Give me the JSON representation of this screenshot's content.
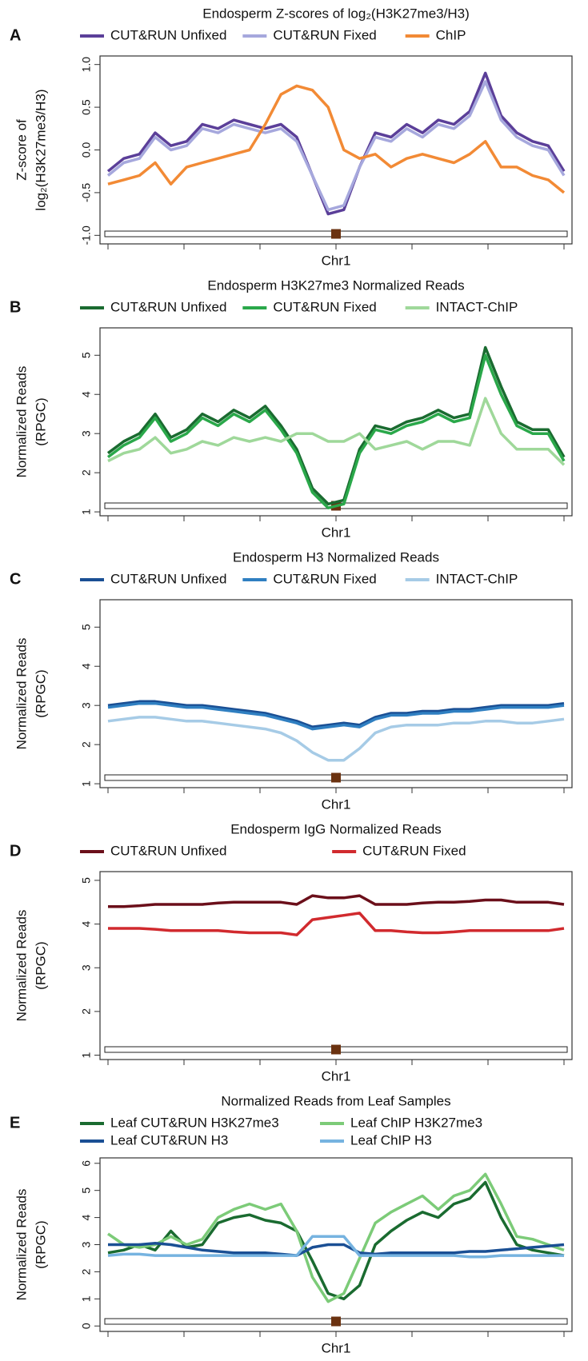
{
  "chart_data": [
    {
      "type": "line",
      "label": "A",
      "title": "Endosperm Z-scores of log₂(H3K27me3/H3)",
      "ylabel": [
        "Z-score of",
        "log₂(H3K27me3/H3)"
      ],
      "xlabel": "Chr1",
      "ylim": [
        -1.1,
        1.1
      ],
      "yticks": [
        {
          "value": -1,
          "label": "-1.0"
        },
        -0.5,
        {
          "value": 0,
          "label": "0.0"
        },
        0.5,
        {
          "value": 1,
          "label": "1.0"
        }
      ],
      "series": [
        {
          "name": "CUT&RUN Unfixed",
          "color": "#5b3f99",
          "values": [
            -0.25,
            -0.1,
            -0.05,
            0.2,
            0.05,
            0.1,
            0.3,
            0.25,
            0.35,
            0.3,
            0.25,
            0.3,
            0.15,
            -0.3,
            -0.75,
            -0.7,
            -0.2,
            0.2,
            0.15,
            0.3,
            0.2,
            0.35,
            0.3,
            0.45,
            0.9,
            0.4,
            0.2,
            0.1,
            0.05,
            -0.25
          ]
        },
        {
          "name": "CUT&RUN Fixed",
          "color": "#a6a8dd",
          "values": [
            -0.3,
            -0.15,
            -0.1,
            0.15,
            0.0,
            0.05,
            0.25,
            0.2,
            0.3,
            0.25,
            0.2,
            0.25,
            0.1,
            -0.3,
            -0.7,
            -0.65,
            -0.2,
            0.15,
            0.1,
            0.25,
            0.15,
            0.3,
            0.25,
            0.4,
            0.8,
            0.35,
            0.15,
            0.05,
            0.0,
            -0.3
          ]
        },
        {
          "name": "ChIP",
          "color": "#f28a35",
          "values": [
            -0.4,
            -0.35,
            -0.3,
            -0.15,
            -0.4,
            -0.2,
            -0.15,
            -0.1,
            -0.05,
            0.0,
            0.3,
            0.65,
            0.75,
            0.7,
            0.5,
            0.0,
            -0.1,
            -0.05,
            -0.2,
            -0.1,
            -0.05,
            -0.1,
            -0.15,
            -0.05,
            0.1,
            -0.2,
            -0.2,
            -0.3,
            -0.35,
            -0.5
          ]
        }
      ]
    },
    {
      "type": "line",
      "label": "B",
      "title": "Endosperm H3K27me3 Normalized Reads",
      "ylabel": [
        "Normalized Reads",
        "(RPGC)"
      ],
      "xlabel": "Chr1",
      "ylim": [
        0.9,
        5.7
      ],
      "yticks": [
        1,
        2,
        3,
        4,
        5
      ],
      "series": [
        {
          "name": "CUT&RUN Unfixed",
          "color": "#1a6b30",
          "values": [
            2.5,
            2.8,
            3.0,
            3.5,
            2.9,
            3.1,
            3.5,
            3.3,
            3.6,
            3.4,
            3.7,
            3.2,
            2.6,
            1.6,
            1.2,
            1.3,
            2.6,
            3.2,
            3.1,
            3.3,
            3.4,
            3.6,
            3.4,
            3.5,
            5.2,
            4.2,
            3.3,
            3.1,
            3.1,
            2.4
          ]
        },
        {
          "name": "CUT&RUN Fixed",
          "color": "#2aa84a",
          "values": [
            2.4,
            2.7,
            2.9,
            3.4,
            2.8,
            3.0,
            3.4,
            3.2,
            3.5,
            3.3,
            3.6,
            3.1,
            2.5,
            1.5,
            1.1,
            1.2,
            2.5,
            3.1,
            3.0,
            3.2,
            3.3,
            3.5,
            3.3,
            3.4,
            5.0,
            4.0,
            3.2,
            3.0,
            3.0,
            2.3
          ]
        },
        {
          "name": "INTACT-ChIP",
          "color": "#9fd89a",
          "values": [
            2.3,
            2.5,
            2.6,
            2.9,
            2.5,
            2.6,
            2.8,
            2.7,
            2.9,
            2.8,
            2.9,
            2.8,
            3.0,
            3.0,
            2.8,
            2.8,
            3.0,
            2.6,
            2.7,
            2.8,
            2.6,
            2.8,
            2.8,
            2.7,
            3.9,
            3.0,
            2.6,
            2.6,
            2.6,
            2.2
          ]
        }
      ]
    },
    {
      "type": "line",
      "label": "C",
      "title": "Endosperm H3 Normalized Reads",
      "ylabel": [
        "Normalized Reads",
        "(RPGC)"
      ],
      "xlabel": "Chr1",
      "ylim": [
        0.9,
        5.7
      ],
      "yticks": [
        1,
        2,
        3,
        4,
        5
      ],
      "series": [
        {
          "name": "CUT&RUN Unfixed",
          "color": "#1a4f94",
          "values": [
            3.0,
            3.05,
            3.1,
            3.1,
            3.05,
            3.0,
            3.0,
            2.95,
            2.9,
            2.85,
            2.8,
            2.7,
            2.6,
            2.45,
            2.5,
            2.55,
            2.5,
            2.7,
            2.8,
            2.8,
            2.85,
            2.85,
            2.9,
            2.9,
            2.95,
            3.0,
            3.0,
            3.0,
            3.0,
            3.05
          ]
        },
        {
          "name": "CUT&RUN Fixed",
          "color": "#2f7fc1",
          "values": [
            2.95,
            3.0,
            3.05,
            3.05,
            3.0,
            2.95,
            2.95,
            2.9,
            2.85,
            2.8,
            2.75,
            2.65,
            2.55,
            2.4,
            2.45,
            2.5,
            2.45,
            2.65,
            2.75,
            2.75,
            2.8,
            2.8,
            2.85,
            2.85,
            2.9,
            2.95,
            2.95,
            2.95,
            2.95,
            3.0
          ]
        },
        {
          "name": "INTACT-ChIP",
          "color": "#a6cbe6",
          "values": [
            2.6,
            2.65,
            2.7,
            2.7,
            2.65,
            2.6,
            2.6,
            2.55,
            2.5,
            2.45,
            2.4,
            2.3,
            2.1,
            1.8,
            1.6,
            1.6,
            1.9,
            2.3,
            2.45,
            2.5,
            2.5,
            2.5,
            2.55,
            2.55,
            2.6,
            2.6,
            2.55,
            2.55,
            2.6,
            2.65
          ]
        }
      ]
    },
    {
      "type": "line",
      "label": "D",
      "title": "Endosperm IgG Normalized Reads",
      "ylabel": [
        "Normalized Reads",
        "(RPGC)"
      ],
      "xlabel": "Chr1",
      "ylim": [
        0.9,
        5.2
      ],
      "yticks": [
        1,
        2,
        3,
        4,
        5
      ],
      "series": [
        {
          "name": "CUT&RUN Unfixed",
          "color": "#6b0f1a",
          "values": [
            4.4,
            4.4,
            4.42,
            4.45,
            4.45,
            4.45,
            4.45,
            4.48,
            4.5,
            4.5,
            4.5,
            4.5,
            4.45,
            4.65,
            4.6,
            4.6,
            4.65,
            4.45,
            4.45,
            4.45,
            4.48,
            4.5,
            4.5,
            4.52,
            4.55,
            4.55,
            4.5,
            4.5,
            4.5,
            4.45
          ]
        },
        {
          "name": "CUT&RUN Fixed",
          "color": "#d12a2e",
          "values": [
            3.9,
            3.9,
            3.9,
            3.88,
            3.85,
            3.85,
            3.85,
            3.85,
            3.82,
            3.8,
            3.8,
            3.8,
            3.75,
            4.1,
            4.15,
            4.2,
            4.25,
            3.85,
            3.85,
            3.82,
            3.8,
            3.8,
            3.82,
            3.85,
            3.85,
            3.85,
            3.85,
            3.85,
            3.85,
            3.9
          ]
        }
      ]
    },
    {
      "type": "line",
      "label": "E",
      "title": "Normalized Reads from Leaf Samples",
      "ylabel": [
        "Normalized Reads",
        "(RPGC)"
      ],
      "xlabel": "Chr1",
      "ylim": [
        -0.2,
        6.2
      ],
      "yticks": [
        0,
        1,
        2,
        3,
        4,
        5,
        6
      ],
      "series": [
        {
          "name": "Leaf CUT&RUN H3K27me3",
          "color": "#1a6b30",
          "values": [
            2.7,
            2.8,
            3.0,
            2.8,
            3.5,
            2.9,
            3.0,
            3.8,
            4.0,
            4.1,
            3.9,
            3.8,
            3.5,
            2.4,
            1.2,
            1.0,
            1.5,
            3.0,
            3.5,
            3.9,
            4.2,
            4.0,
            4.5,
            4.7,
            5.3,
            4.0,
            3.0,
            2.8,
            2.7,
            2.6
          ]
        },
        {
          "name": "Leaf ChIP H3K27me3",
          "color": "#7ccb78",
          "values": [
            3.4,
            3.0,
            2.9,
            3.0,
            3.3,
            3.0,
            3.2,
            4.0,
            4.3,
            4.5,
            4.3,
            4.5,
            3.5,
            1.8,
            0.9,
            1.2,
            2.5,
            3.8,
            4.2,
            4.5,
            4.8,
            4.3,
            4.8,
            5.0,
            5.6,
            4.5,
            3.3,
            3.2,
            3.0,
            2.8
          ]
        },
        {
          "name": "Leaf CUT&RUN H3",
          "color": "#1a4f94",
          "values": [
            3.0,
            3.0,
            3.0,
            3.05,
            3.0,
            2.9,
            2.8,
            2.75,
            2.7,
            2.7,
            2.7,
            2.65,
            2.6,
            2.9,
            3.0,
            3.0,
            2.7,
            2.65,
            2.7,
            2.7,
            2.7,
            2.7,
            2.7,
            2.75,
            2.75,
            2.8,
            2.85,
            2.9,
            2.95,
            3.0
          ]
        },
        {
          "name": "Leaf ChIP H3",
          "color": "#76b3e0",
          "values": [
            2.6,
            2.65,
            2.65,
            2.6,
            2.6,
            2.6,
            2.6,
            2.6,
            2.6,
            2.6,
            2.6,
            2.6,
            2.6,
            3.3,
            3.3,
            3.3,
            2.6,
            2.6,
            2.6,
            2.6,
            2.6,
            2.6,
            2.6,
            2.55,
            2.55,
            2.6,
            2.6,
            2.6,
            2.6,
            2.6
          ]
        }
      ]
    }
  ]
}
